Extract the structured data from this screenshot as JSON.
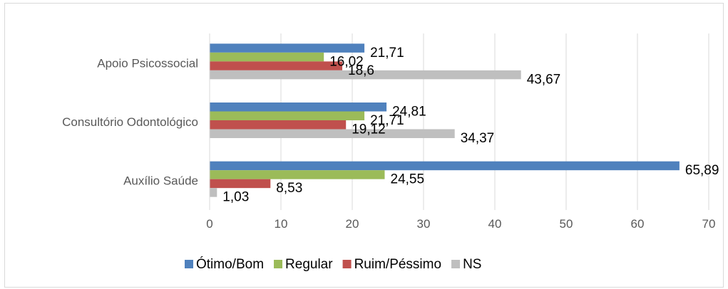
{
  "chart_data": {
    "type": "bar",
    "orientation": "horizontal",
    "categories": [
      "Apoio Psicossocial",
      "Consultório Odontológico",
      "Auxílio Saúde"
    ],
    "series": [
      {
        "name": "Ótimo/Bom",
        "color": "#4f81bd",
        "values": [
          21.71,
          24.81,
          65.89
        ],
        "labels": [
          "21,71",
          "24,81",
          "65,89"
        ]
      },
      {
        "name": "Regular",
        "color": "#9bbb59",
        "values": [
          16.02,
          21.71,
          24.55
        ],
        "labels": [
          "16,02",
          "21,71",
          "24,55"
        ]
      },
      {
        "name": "Ruim/Péssimo",
        "color": "#c0504d",
        "values": [
          18.6,
          19.12,
          8.53
        ],
        "labels": [
          "18,6",
          "19,12",
          "8,53"
        ]
      },
      {
        "name": "NS",
        "color": "#bfbfbf",
        "values": [
          43.67,
          34.37,
          1.03
        ],
        "labels": [
          "43,67",
          "34,37",
          "1,03"
        ]
      }
    ],
    "xlim": [
      0,
      70
    ],
    "ticks": [
      "0",
      "10",
      "20",
      "30",
      "40",
      "50",
      "60",
      "70"
    ],
    "grid": true,
    "legend_position": "bottom"
  }
}
